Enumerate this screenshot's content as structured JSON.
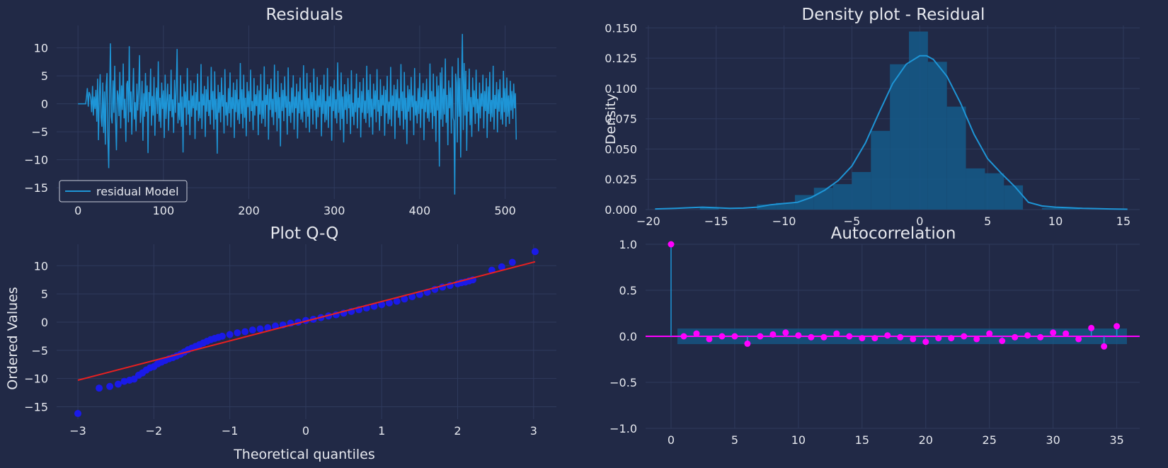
{
  "chart_data": [
    {
      "type": "line",
      "title": "Residuals",
      "xlabel": "",
      "ylabel": "",
      "xlim": [
        -25,
        560
      ],
      "ylim": [
        -17,
        14
      ],
      "xticks": [
        0,
        100,
        200,
        300,
        400,
        500
      ],
      "yticks": [
        -15,
        -10,
        -5,
        0,
        5,
        10
      ],
      "grid": true,
      "legend_position": "lower-left",
      "color": "#1e95d6",
      "series": [
        {
          "name": "residual Model",
          "x_start": 0,
          "x_step": 1,
          "values": [
            0,
            0,
            0,
            0,
            0,
            0,
            0,
            0,
            0,
            0,
            1.2,
            2.8,
            -0.5,
            2.1,
            1.7,
            0.8,
            -1.5,
            3.2,
            -2.1,
            1.3,
            -0.9,
            2.5,
            -3.2,
            4.5,
            -6.5,
            1.2,
            5.3,
            -2.4,
            -4.1,
            3.8,
            -5.2,
            2.2,
            -7.3,
            3.1,
            5.5,
            -6.2,
            -11.5,
            1.8,
            10.8,
            -2.3,
            -3.5,
            4.2,
            -1.6,
            6.8,
            -3.1,
            -8.3,
            2.4,
            1.5,
            -2.2,
            5.7,
            -4.4,
            3.3,
            -1.1,
            7.2,
            -2.6,
            0.9,
            -6.8,
            3.5,
            4.1,
            -3.3,
            10.3,
            -1.5,
            2.2,
            -5.5,
            1.1,
            6.4,
            -2.8,
            0.3,
            -4.9,
            3.6,
            -1.2,
            2.5,
            8.7,
            -3.4,
            -0.8,
            4.1,
            -6.6,
            1.9,
            -2.3,
            5.5,
            -1.4,
            3.3,
            -8.8,
            2.1,
            -0.4,
            6.3,
            -3.9,
            1.4,
            -2.1,
            4.8,
            -5.7,
            0.6,
            2.9,
            -1.8,
            7.6,
            -3.2,
            1.1,
            -4.3,
            3.8,
            -0.9,
            2.4,
            -6.1,
            5.2,
            -2.7,
            0.5,
            3.6,
            -4.8,
            1.7,
            -1.3,
            6.1,
            -2.4,
            0.8,
            -5.2,
            4.3,
            -1.6,
            2.7,
            9.8,
            -3.5,
            0.2,
            -2.9,
            5.1,
            -4.1,
            1.3,
            -8.7,
            3.6,
            -0.7,
            2.2,
            -3.8,
            6.4,
            -1.9,
            0.6,
            -5.6,
            4.2,
            -2.3,
            1.5,
            -0.8,
            3.7,
            -6.3,
            2.1,
            -1.2,
            5.4,
            -3.1,
            0.4,
            -2.6,
            7.1,
            -4.5,
            1.8,
            -0.3,
            3.2,
            -5.9,
            2.6,
            -1.4,
            4.9,
            -2.2,
            0.7,
            -3.7,
            6.6,
            -1.1,
            2.3,
            -4.6,
            5.8,
            -2.8,
            0.9,
            -8.9,
            3.4,
            -1.6,
            2.1,
            -3.3,
            4.7,
            -0.5,
            1.6,
            -5.3,
            6.2,
            -2.1,
            0.3,
            -3.9,
            2.8,
            -1.7,
            5.6,
            -4.2,
            1.2,
            -0.9,
            3.8,
            -6.1,
            2.5,
            -1.5,
            4.4,
            -2.9,
            0.8,
            -3.6,
            7.3,
            -1.8,
            2.6,
            -4.4,
            5.2,
            -2.5,
            1.1,
            -5.8,
            3.9,
            -0.6,
            2.3,
            -3.2,
            6.1,
            -1.3,
            0.5,
            -4.7,
            4.6,
            -2.1,
            1.7,
            -0.4,
            3.3,
            -5.6,
            2.4,
            -1.9,
            5.3,
            -3.5,
            0.6,
            -2.7,
            6.7,
            -4.1,
            1.6,
            -0.2,
            3.5,
            -6.4,
            2.7,
            -1.1,
            4.5,
            -2.4,
            0.9,
            -3.8,
            7.0,
            -1.5,
            2.1,
            -4.9,
            5.9,
            -2.6,
            1.2,
            -7.6,
            3.7,
            -1.3,
            2.5,
            -3.1,
            4.9,
            -0.7,
            1.4,
            -5.5,
            6.5,
            -2.2,
            0.4,
            -3.4,
            2.9,
            -1.6,
            5.1,
            -4.6,
            1.3,
            -0.8,
            3.6,
            -6.2,
            2.2,
            -1.7,
            4.7,
            -2.8,
            0.7,
            -3.3,
            6.9,
            -1.4,
            2.7,
            -4.3,
            5.5,
            -2.3,
            1.0,
            -5.1,
            3.8,
            -0.9,
            2.1,
            -3.7,
            6.3,
            -1.2,
            0.6,
            -4.5,
            4.8,
            -2.4,
            1.5,
            -0.6,
            3.4,
            -5.8,
            2.6,
            -1.8,
            5.2,
            -3.3,
            0.5,
            -2.9,
            6.4,
            -4.3,
            1.4,
            -0.5,
            3.1,
            -6.6,
            2.8,
            -1.3,
            4.3,
            -2.6,
            0.8,
            -3.5,
            7.4,
            -1.6,
            2.4,
            -4.7,
            5.6,
            -2.7,
            1.3,
            -6.9,
            3.5,
            -1.1,
            2.2,
            -3.6,
            4.6,
            -0.8,
            1.7,
            -5.4,
            6.0,
            -2.3,
            0.2,
            -3.8,
            2.7,
            -1.5,
            5.4,
            -4.4,
            1.1,
            -0.7,
            3.9,
            -6.0,
            2.3,
            -1.6,
            4.6,
            -2.7,
            0.6,
            -3.4,
            6.8,
            -1.7,
            2.5,
            -4.2,
            5.3,
            -2.4,
            0.9,
            -5.5,
            3.6,
            -1.0,
            2.4,
            -3.3,
            6.2,
            -1.4,
            0.7,
            -4.8,
            4.4,
            -2.2,
            1.6,
            -0.3,
            3.2,
            -5.7,
            2.5,
            -1.7,
            5.0,
            -3.6,
            0.4,
            -2.8,
            6.6,
            -4.0,
            1.5,
            -0.4,
            3.4,
            -6.3,
            2.6,
            -1.2,
            4.4,
            -2.5,
            1.0,
            -3.9,
            7.1,
            -1.3,
            2.2,
            -4.6,
            5.7,
            -2.8,
            1.1,
            -7.2,
            3.3,
            -1.4,
            2.6,
            -3.0,
            4.8,
            -0.6,
            1.5,
            -5.6,
            6.4,
            -2.1,
            0.5,
            -3.5,
            2.8,
            -1.8,
            5.5,
            -4.3,
            1.2,
            -0.9,
            3.7,
            -6.5,
            2.4,
            -1.5,
            4.5,
            -2.6,
            0.8,
            -3.2,
            7.2,
            -1.6,
            2.3,
            -4.5,
            5.4,
            -2.2,
            1.3,
            -6.8,
            4.9,
            -1.2,
            3.3,
            -11.2,
            5.6,
            -2.8,
            6.5,
            -4.1,
            2.7,
            -1.9,
            8.1,
            -3.4,
            1.6,
            -7.4,
            4.2,
            -0.8,
            2.9,
            -5.3,
            6.7,
            -2.5,
            -3.1,
            -16.2,
            5.4,
            3.8,
            -6.9,
            8.2,
            -2.3,
            4.6,
            -9.6,
            3.1,
            12.5,
            -4.7,
            7.3,
            -2.1,
            5.9,
            -8.4,
            2.6,
            -1.4,
            6.3,
            -3.8,
            1.2,
            -5.9,
            4.7,
            -0.6,
            2.4,
            -3.6,
            6.1,
            -1.7,
            0.9,
            -4.9,
            3.8,
            -2.6,
            1.9,
            -0.5,
            5.2,
            -4.4,
            2.3,
            -1.3,
            4.6,
            -6.1,
            3.1,
            -1.8,
            5.7,
            -3.2,
            0.7,
            -2.4,
            6.8,
            -4.6,
            1.6,
            -0.9,
            3.9,
            -5.1,
            2.6,
            -1.4,
            4.4,
            -2.8,
            1.1,
            -3.7,
            5.9,
            -1.5,
            2.8,
            -4.1,
            4.7,
            -2.3,
            1.5,
            -3.6,
            4.1,
            -1.2,
            2.3,
            -2.7,
            3.6,
            -0.8,
            1.9,
            -6.4
          ]
        }
      ]
    },
    {
      "type": "histogram_kde",
      "title": "Density plot - Residual",
      "xlabel": "",
      "ylabel": "Density",
      "xlim": [
        -20.2,
        16.2
      ],
      "ylim": [
        0,
        0.152
      ],
      "xticks": [
        -20,
        -15,
        -10,
        -5,
        0,
        5,
        10,
        15
      ],
      "yticks": [
        0.0,
        0.025,
        0.05,
        0.075,
        0.1,
        0.125,
        0.15
      ],
      "grid": true,
      "bar_color": "#145a8a",
      "line_color": "#1e95d6",
      "bins": {
        "edges": [
          -16.2,
          -14.8,
          -13.4,
          -12.0,
          -10.6,
          -9.2,
          -7.8,
          -6.4,
          -5.0,
          -3.6,
          -2.2,
          -0.8,
          0.6,
          2.0,
          3.4,
          4.8,
          6.2,
          7.6,
          9.0,
          10.4,
          11.8
        ],
        "heights": [
          0.0014,
          0.0,
          0.0,
          0.0042,
          0.0055,
          0.012,
          0.018,
          0.021,
          0.031,
          0.065,
          0.12,
          0.147,
          0.122,
          0.085,
          0.034,
          0.03,
          0.02,
          0.0,
          0.0014,
          0.0014
        ]
      },
      "kde": {
        "x": [
          -19.5,
          -18,
          -17,
          -16,
          -15,
          -14,
          -13,
          -12,
          -11,
          -10,
          -9,
          -8,
          -7,
          -6,
          -5,
          -4,
          -3,
          -2,
          -1,
          0,
          0.5,
          1,
          2,
          3,
          4,
          5,
          6,
          7,
          8,
          9,
          10,
          11,
          12,
          13,
          14,
          15.3
        ],
        "y": [
          0.0005,
          0.001,
          0.0015,
          0.002,
          0.0015,
          0.001,
          0.0012,
          0.002,
          0.004,
          0.005,
          0.006,
          0.01,
          0.016,
          0.024,
          0.036,
          0.055,
          0.08,
          0.104,
          0.12,
          0.127,
          0.127,
          0.124,
          0.11,
          0.088,
          0.062,
          0.042,
          0.03,
          0.019,
          0.006,
          0.003,
          0.002,
          0.0015,
          0.001,
          0.0008,
          0.0005,
          0.0003
        ]
      }
    },
    {
      "type": "scatter",
      "title": "Plot Q-Q",
      "xlabel": "Theoretical quantiles",
      "ylabel": "Ordered Values",
      "xlim": [
        -3.28,
        3.3
      ],
      "ylim": [
        -17.2,
        13.8
      ],
      "xticks": [
        -3,
        -2,
        -1,
        0,
        1,
        2,
        3
      ],
      "yticks": [
        -15,
        -10,
        -5,
        0,
        5,
        10
      ],
      "grid": true,
      "point_color": "#1a1ae8",
      "line_color": "#e82020",
      "fit_line": {
        "x": [
          -3.0,
          3.02
        ],
        "y": [
          -10.3,
          10.7
        ]
      },
      "points": {
        "x": [
          -3.0,
          -2.72,
          -2.58,
          -2.47,
          -2.39,
          -2.32,
          -2.26,
          -2.2,
          -2.15,
          -2.1,
          -2.05,
          -2.0,
          -1.95,
          -1.9,
          -1.85,
          -1.8,
          -1.75,
          -1.7,
          -1.65,
          -1.6,
          -1.55,
          -1.5,
          -1.45,
          -1.4,
          -1.35,
          -1.3,
          -1.25,
          -1.2,
          -1.15,
          -1.1,
          -1.0,
          -0.9,
          -0.8,
          -0.7,
          -0.6,
          -0.5,
          -0.4,
          -0.3,
          -0.2,
          -0.1,
          0.0,
          0.1,
          0.2,
          0.3,
          0.4,
          0.5,
          0.6,
          0.7,
          0.8,
          0.9,
          1.0,
          1.1,
          1.2,
          1.3,
          1.4,
          1.5,
          1.6,
          1.7,
          1.8,
          1.9,
          2.0,
          2.05,
          2.1,
          2.15,
          2.2,
          2.45,
          2.58,
          2.72,
          3.02
        ],
        "y": [
          -16.2,
          -11.7,
          -11.4,
          -11.0,
          -10.5,
          -10.3,
          -10.1,
          -9.4,
          -9.0,
          -8.5,
          -8.1,
          -7.9,
          -7.4,
          -7.1,
          -6.8,
          -6.5,
          -6.3,
          -6.0,
          -5.7,
          -5.3,
          -4.9,
          -4.6,
          -4.3,
          -4.0,
          -3.7,
          -3.4,
          -3.1,
          -2.9,
          -2.7,
          -2.5,
          -2.2,
          -1.9,
          -1.7,
          -1.4,
          -1.2,
          -1.0,
          -0.7,
          -0.5,
          -0.2,
          0.0,
          0.3,
          0.5,
          0.8,
          1.1,
          1.3,
          1.6,
          1.9,
          2.2,
          2.5,
          2.8,
          3.1,
          3.4,
          3.7,
          4.1,
          4.5,
          4.9,
          5.3,
          5.8,
          6.2,
          6.5,
          6.8,
          7.0,
          7.1,
          7.3,
          7.5,
          9.2,
          9.8,
          10.6,
          12.5
        ]
      }
    },
    {
      "type": "stem",
      "title": "Autocorrelation",
      "xlabel": "",
      "ylabel": "",
      "xlim": [
        -2,
        36.8
      ],
      "ylim": [
        -1.0,
        1.0
      ],
      "xticks": [
        0,
        5,
        10,
        15,
        20,
        25,
        30,
        35
      ],
      "yticks": [
        -1.0,
        -0.5,
        0.0,
        0.5,
        1.0
      ],
      "grid": true,
      "marker_color": "#ff00ff",
      "stem_color": "#1e95d6",
      "conf_band_color": "#145a8a",
      "conf_band": 0.085,
      "lags": [
        0,
        1,
        2,
        3,
        4,
        5,
        6,
        7,
        8,
        9,
        10,
        11,
        12,
        13,
        14,
        15,
        16,
        17,
        18,
        19,
        20,
        21,
        22,
        23,
        24,
        25,
        26,
        27,
        28,
        29,
        30,
        31,
        32,
        33,
        34,
        35
      ],
      "values": [
        1.0,
        0.0,
        0.03,
        -0.03,
        0.0,
        0.0,
        -0.08,
        0.0,
        0.02,
        0.04,
        0.01,
        -0.01,
        -0.01,
        0.03,
        0.0,
        -0.02,
        -0.02,
        0.01,
        -0.01,
        -0.03,
        -0.06,
        -0.02,
        -0.02,
        0.0,
        -0.03,
        0.03,
        -0.05,
        -0.01,
        0.01,
        -0.01,
        0.04,
        0.03,
        -0.03,
        0.09,
        -0.11,
        0.11
      ]
    }
  ]
}
